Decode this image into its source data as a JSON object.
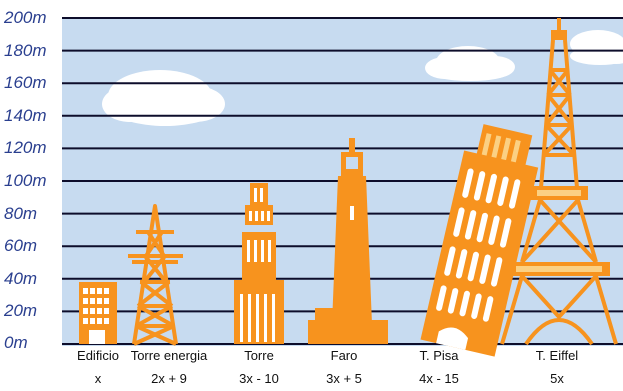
{
  "colors": {
    "sky": "#c7dbf0",
    "building": "#f7931e",
    "building_light": "#fbd083",
    "window": "#ffffff",
    "cloud": "#ffffff",
    "grid_line": "#0d0d2b",
    "tick_text": "#2a3f8f"
  },
  "y_axis": {
    "unit": "m",
    "ticks": [
      "200m",
      "180m",
      "160m",
      "140m",
      "120m",
      "100m",
      "80m",
      "60m",
      "40m",
      "20m",
      "0m"
    ],
    "range": [
      0,
      200
    ]
  },
  "buildings": [
    {
      "name": "Edificio",
      "expression": "x",
      "height_m": 40,
      "icon": "office-building-icon"
    },
    {
      "name": "Torre energia",
      "expression": "2x + 9",
      "height_m": 89,
      "icon": "power-pylon-icon"
    },
    {
      "name": "Torre",
      "expression": "3x - 10",
      "height_m": 110,
      "icon": "tower-icon"
    },
    {
      "name": "Faro",
      "expression": "3x + 5",
      "height_m": 125,
      "icon": "lighthouse-icon"
    },
    {
      "name": "T. Pisa",
      "expression": "4x - 15",
      "height_m": 145,
      "icon": "leaning-tower-icon"
    },
    {
      "name": "T. Eiffel",
      "expression": "5x",
      "height_m": 200,
      "icon": "eiffel-tower-icon"
    }
  ]
}
